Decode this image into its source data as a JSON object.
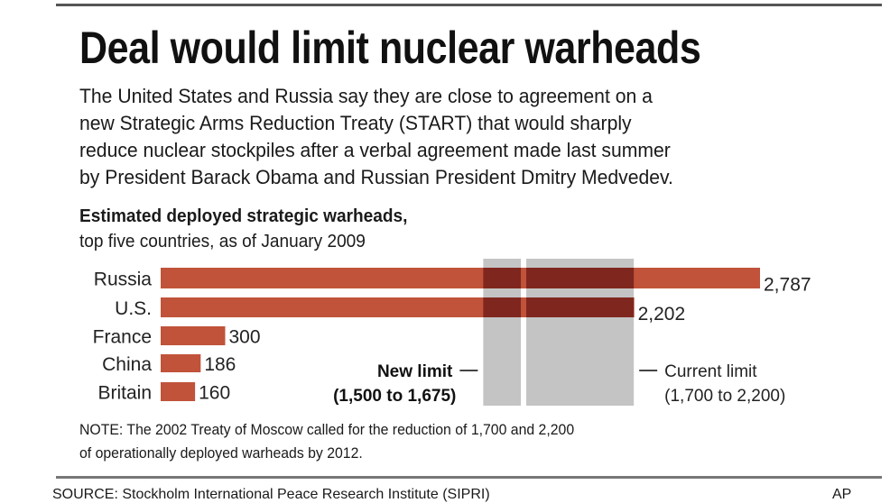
{
  "title": "Deal would limit nuclear warheads",
  "intro": [
    "The United States and Russia say they are close to agreement on a",
    "new Strategic Arms Reduction Treaty (START) that would sharply",
    "reduce nuclear stockpiles after a verbal agreement made last summer",
    "by President Barack Obama and Russian President Dmitry Medvedev."
  ],
  "chart_data": {
    "type": "bar",
    "orientation": "horizontal",
    "title": "Estimated deployed strategic warheads,",
    "subtitle": "top five countries, as of January 2009",
    "categories": [
      "Russia",
      "U.S.",
      "France",
      "China",
      "Britain"
    ],
    "values": [
      2787,
      2202,
      300,
      186,
      160
    ],
    "value_labels": [
      "2,787",
      "2,202",
      "300",
      "186",
      "160"
    ],
    "bar_color": "#c0533a",
    "overlap_color": "#7a241c",
    "band_color": "#c4c4c4",
    "bands": [
      {
        "name": "New limit",
        "range_label": "(1,500 to 1,675)",
        "from": 1500,
        "to": 1675
      },
      {
        "name": "Current limit",
        "range_label": "(1,700 to 2,200)",
        "from": 1700,
        "to": 2200
      }
    ],
    "xlim": [
      0,
      2787
    ],
    "grid": false
  },
  "note": [
    "NOTE: The 2002 Treaty of Moscow called for the reduction of 1,700 and 2,200",
    "of operationally deployed warheads by 2012."
  ],
  "source": "SOURCE: Stockholm International Peace Research Institute (SIPRI)",
  "credit": "AP"
}
